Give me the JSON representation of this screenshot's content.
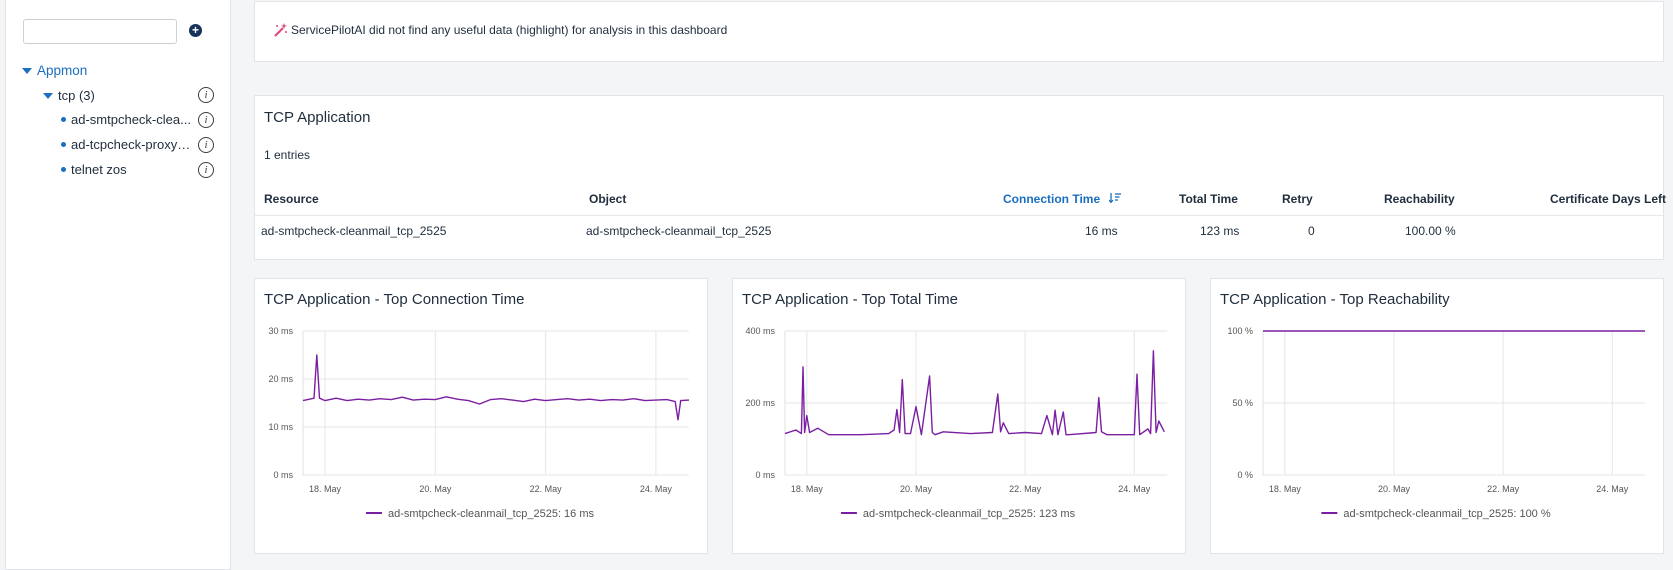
{
  "sidebar": {
    "search": {
      "placeholder": "",
      "value": ""
    },
    "add_symbol": "+",
    "tree": {
      "root": "Appmon",
      "group": "tcp (3)",
      "items": [
        "ad-smtpcheck-clea...",
        "ad-tcpcheck-proxyp...",
        "telnet zos"
      ]
    },
    "info_symbol": "i"
  },
  "ai_banner": {
    "text": "ServicePilotAI did not find any useful data (highlight) for analysis in this dashboard",
    "icon": "magic-wand-icon"
  },
  "table": {
    "title": "TCP Application",
    "entries": "1 entries",
    "sort_icon": "sort-descending-icon",
    "columns": [
      "Resource",
      "Object",
      "Connection Time",
      "Total Time",
      "Retry",
      "Reachability",
      "Certificate Days Left"
    ],
    "rows": [
      [
        "ad-smtpcheck-cleanmail_tcp_2525",
        "ad-smtpcheck-cleanmail_tcp_2525",
        "16 ms",
        "123 ms",
        "0",
        "100.00 %",
        ""
      ]
    ]
  },
  "colors": {
    "accent": "#1a6fbf",
    "series": "#7b1fa2",
    "nav": "#14325a"
  },
  "chart_data": [
    {
      "type": "line",
      "title": "TCP Application - Top Connection Time",
      "xlabel": "",
      "ylabel": "",
      "x_tick_labels": [
        "18. May",
        "20. May",
        "22. May",
        "24. May"
      ],
      "y_tick_labels": [
        "0 ms",
        "10 ms",
        "20 ms",
        "30 ms"
      ],
      "ylim": [
        0,
        30
      ],
      "xlim": [
        17.6,
        24.6
      ],
      "grid": true,
      "legend_position": "bottom",
      "series": [
        {
          "name": "ad-smtpcheck-cleanmail_tcp_2525: 16 ms",
          "x": [
            17.6,
            17.8,
            17.85,
            17.9,
            18.0,
            18.2,
            18.4,
            18.6,
            18.8,
            19.0,
            19.2,
            19.4,
            19.6,
            19.8,
            20.0,
            20.2,
            20.4,
            20.6,
            20.8,
            21.0,
            21.2,
            21.4,
            21.6,
            21.8,
            22.0,
            22.2,
            22.4,
            22.6,
            22.8,
            23.0,
            23.2,
            23.4,
            23.6,
            23.8,
            24.0,
            24.2,
            24.35,
            24.4,
            24.45,
            24.6
          ],
          "y": [
            15.5,
            16,
            25,
            16,
            15.5,
            16,
            15.5,
            15.8,
            15.6,
            15.9,
            15.7,
            16.2,
            15.6,
            15.8,
            15.7,
            16.3,
            15.8,
            15.5,
            14.8,
            15.7,
            15.9,
            15.6,
            15.3,
            15.8,
            15.5,
            15.7,
            15.9,
            15.6,
            15.8,
            15.5,
            15.7,
            15.6,
            15.9,
            15.5,
            15.6,
            15.7,
            15.3,
            11.5,
            15.5,
            15.6
          ]
        }
      ]
    },
    {
      "type": "line",
      "title": "TCP Application - Top Total Time",
      "xlabel": "",
      "ylabel": "",
      "x_tick_labels": [
        "18. May",
        "20. May",
        "22. May",
        "24. May"
      ],
      "y_tick_labels": [
        "0 ms",
        "200 ms",
        "400 ms"
      ],
      "ylim": [
        0,
        400
      ],
      "xlim": [
        17.6,
        24.6
      ],
      "grid": true,
      "legend_position": "bottom",
      "series": [
        {
          "name": "ad-smtpcheck-cleanmail_tcp_2525: 123 ms",
          "x": [
            17.6,
            17.8,
            17.9,
            17.93,
            17.96,
            18.0,
            18.05,
            18.2,
            18.4,
            19.0,
            19.5,
            19.6,
            19.65,
            19.7,
            19.75,
            19.8,
            19.9,
            20.0,
            20.1,
            20.25,
            20.3,
            20.35,
            20.5,
            21.0,
            21.4,
            21.5,
            21.55,
            21.6,
            21.7,
            22.0,
            22.3,
            22.4,
            22.5,
            22.55,
            22.6,
            22.7,
            22.75,
            22.8,
            23.3,
            23.35,
            23.4,
            23.5,
            23.9,
            24.0,
            24.05,
            24.1,
            24.25,
            24.3,
            24.35,
            24.4,
            24.45,
            24.55
          ],
          "y": [
            115,
            125,
            115,
            300,
            118,
            165,
            118,
            130,
            112,
            112,
            115,
            125,
            182,
            118,
            265,
            115,
            115,
            190,
            112,
            275,
            118,
            112,
            120,
            115,
            118,
            225,
            120,
            145,
            115,
            118,
            115,
            165,
            112,
            180,
            112,
            175,
            112,
            112,
            118,
            215,
            120,
            112,
            112,
            112,
            280,
            112,
            128,
            115,
            345,
            118,
            150,
            120
          ]
        }
      ]
    },
    {
      "type": "line",
      "title": "TCP Application - Top Reachability",
      "xlabel": "",
      "ylabel": "",
      "x_tick_labels": [
        "18. May",
        "20. May",
        "22. May",
        "24. May"
      ],
      "y_tick_labels": [
        "0 %",
        "50 %",
        "100 %"
      ],
      "ylim": [
        0,
        100
      ],
      "xlim": [
        17.6,
        24.6
      ],
      "grid": true,
      "legend_position": "bottom",
      "series": [
        {
          "name": "ad-smtpcheck-cleanmail_tcp_2525: 100 %",
          "x": [
            17.6,
            24.6
          ],
          "y": [
            100,
            100
          ]
        }
      ]
    }
  ]
}
